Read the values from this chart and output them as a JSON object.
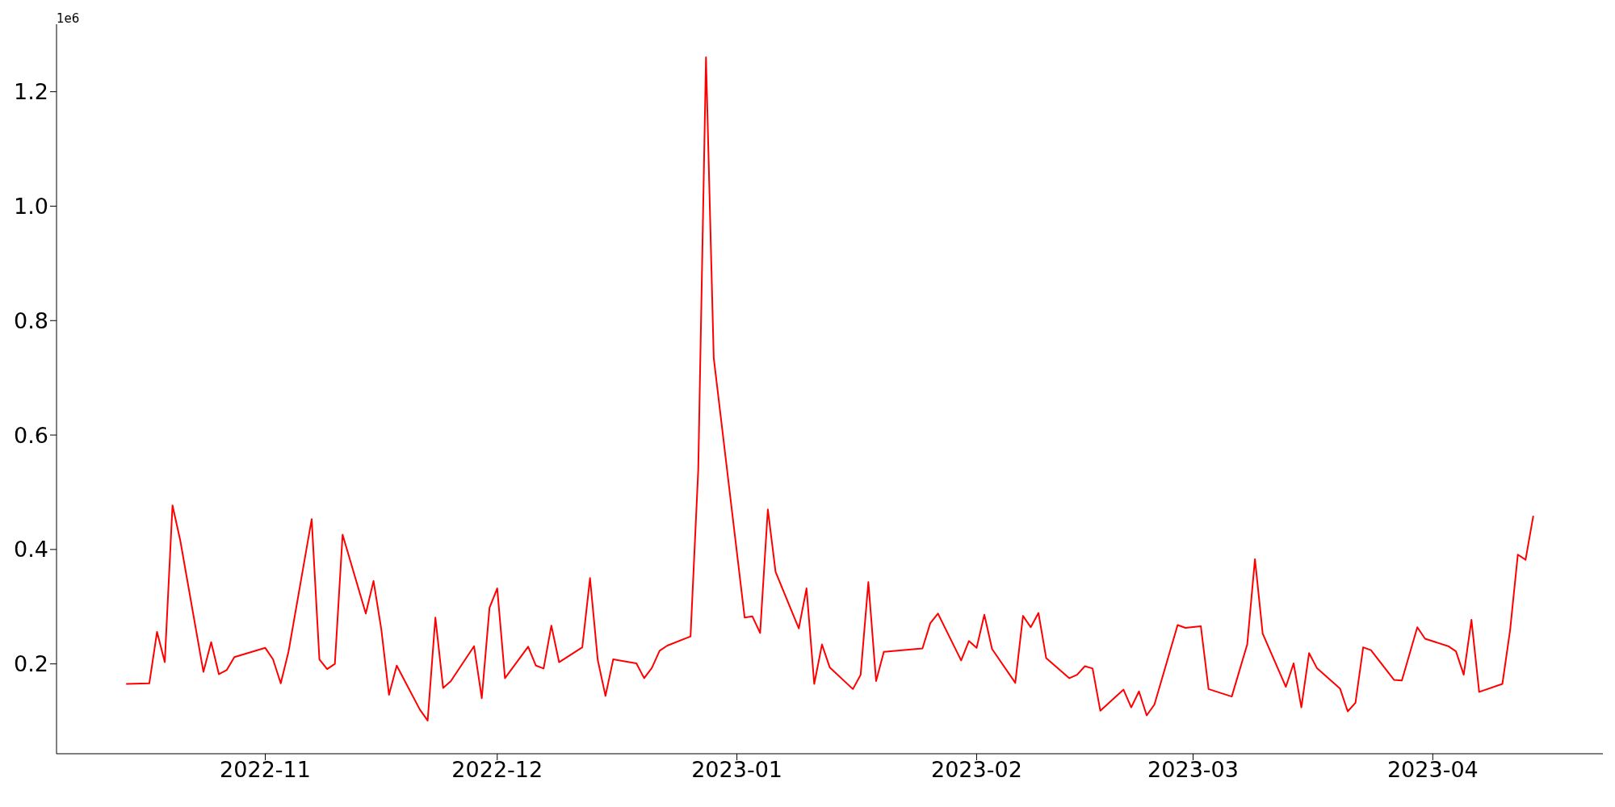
{
  "chart_data": {
    "type": "line",
    "annotations": [
      "1e6"
    ],
    "x": [
      "2022-10-14",
      "2022-10-17",
      "2022-10-18",
      "2022-10-19",
      "2022-10-20",
      "2022-10-21",
      "2022-10-24",
      "2022-10-25",
      "2022-10-26",
      "2022-10-27",
      "2022-10-28",
      "2022-11-01",
      "2022-11-02",
      "2022-11-03",
      "2022-11-04",
      "2022-11-07",
      "2022-11-08",
      "2022-11-09",
      "2022-11-10",
      "2022-11-11",
      "2022-11-14",
      "2022-11-15",
      "2022-11-16",
      "2022-11-17",
      "2022-11-18",
      "2022-11-21",
      "2022-11-22",
      "2022-11-23",
      "2022-11-24",
      "2022-11-25",
      "2022-11-28",
      "2022-11-29",
      "2022-11-30",
      "2022-12-01",
      "2022-12-02",
      "2022-12-05",
      "2022-12-06",
      "2022-12-07",
      "2022-12-08",
      "2022-12-09",
      "2022-12-12",
      "2022-12-13",
      "2022-12-14",
      "2022-12-15",
      "2022-12-16",
      "2022-12-19",
      "2022-12-20",
      "2022-12-21",
      "2022-12-22",
      "2022-12-23",
      "2022-12-26",
      "2022-12-27",
      "2022-12-28",
      "2022-12-29",
      "2023-01-02",
      "2023-01-03",
      "2023-01-04",
      "2023-01-05",
      "2023-01-06",
      "2023-01-09",
      "2023-01-10",
      "2023-01-11",
      "2023-01-12",
      "2023-01-13",
      "2023-01-16",
      "2023-01-17",
      "2023-01-18",
      "2023-01-19",
      "2023-01-20",
      "2023-01-25",
      "2023-01-26",
      "2023-01-27",
      "2023-01-30",
      "2023-01-31",
      "2023-02-01",
      "2023-02-02",
      "2023-02-03",
      "2023-02-06",
      "2023-02-07",
      "2023-02-08",
      "2023-02-09",
      "2023-02-10",
      "2023-02-13",
      "2023-02-14",
      "2023-02-15",
      "2023-02-16",
      "2023-02-17",
      "2023-02-20",
      "2023-02-21",
      "2023-02-22",
      "2023-02-23",
      "2023-02-24",
      "2023-02-27",
      "2023-02-28",
      "2023-03-02",
      "2023-03-03",
      "2023-03-06",
      "2023-03-08",
      "2023-03-09",
      "2023-03-10",
      "2023-03-13",
      "2023-03-14",
      "2023-03-15",
      "2023-03-16",
      "2023-03-17",
      "2023-03-20",
      "2023-03-21",
      "2023-03-22",
      "2023-03-23",
      "2023-03-24",
      "2023-03-27",
      "2023-03-28",
      "2023-03-30",
      "2023-03-31",
      "2023-04-03",
      "2023-04-04",
      "2023-04-05",
      "2023-04-06",
      "2023-04-07",
      "2023-04-10",
      "2023-04-11",
      "2023-04-12",
      "2023-04-13",
      "2023-04-14"
    ],
    "series": [
      {
        "color": "#ff0000",
        "values": [
          0.165,
          0.166,
          0.256,
          0.203,
          0.477,
          0.416,
          0.186,
          0.238,
          0.182,
          0.189,
          0.212,
          0.228,
          0.208,
          0.166,
          0.221,
          0.453,
          0.208,
          0.191,
          0.2,
          0.426,
          0.288,
          0.345,
          0.261,
          0.146,
          0.197,
          0.12,
          0.101,
          0.281,
          0.158,
          0.17,
          0.231,
          0.14,
          0.298,
          0.332,
          0.175,
          0.23,
          0.197,
          0.192,
          0.267,
          0.203,
          0.229,
          0.35,
          0.207,
          0.144,
          0.208,
          0.201,
          0.175,
          0.193,
          0.223,
          0.232,
          0.248,
          0.54,
          1.26,
          0.735,
          0.281,
          0.283,
          0.254,
          0.47,
          0.361,
          0.262,
          0.332,
          0.165,
          0.234,
          0.194,
          0.156,
          0.181,
          0.343,
          0.17,
          0.221,
          0.227,
          0.271,
          0.288,
          0.206,
          0.24,
          0.228,
          0.286,
          0.226,
          0.167,
          0.284,
          0.264,
          0.289,
          0.21,
          0.175,
          0.181,
          0.196,
          0.192,
          0.118,
          0.155,
          0.124,
          0.152,
          0.11,
          0.129,
          0.268,
          0.263,
          0.266,
          0.156,
          0.143,
          0.234,
          0.383,
          0.253,
          0.16,
          0.201,
          0.124,
          0.219,
          0.193,
          0.157,
          0.117,
          0.132,
          0.229,
          0.224,
          0.172,
          0.171,
          0.264,
          0.244,
          0.231,
          0.222,
          0.181,
          0.277,
          0.151,
          0.165,
          0.259,
          0.391,
          0.382,
          0.459
        ]
      }
    ],
    "xlim": [
      "2022-10-05",
      "2023-04-23"
    ],
    "xticks": [
      {
        "value": "2022-11-01",
        "label": "2022-11"
      },
      {
        "value": "2022-12-01",
        "label": "2022-12"
      },
      {
        "value": "2023-01-01",
        "label": "2023-01"
      },
      {
        "value": "2023-02-01",
        "label": "2023-02"
      },
      {
        "value": "2023-03-01",
        "label": "2023-03"
      },
      {
        "value": "2023-04-01",
        "label": "2023-04"
      }
    ],
    "ylim": [
      0.043,
      1.318
    ],
    "yticks": [
      0.2,
      0.4,
      0.6,
      0.8,
      {
        "value": 1,
        "label": "1.0"
      },
      1.2
    ],
    "grid": false,
    "legend": false,
    "marker": "none",
    "line_style": "solid"
  }
}
